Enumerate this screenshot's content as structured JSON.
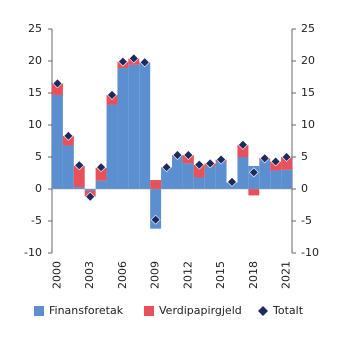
{
  "chart_data": {
    "type": "stacked-bar",
    "categories": [
      "2000",
      null,
      null,
      "2003",
      null,
      null,
      "2006",
      null,
      null,
      "2009",
      null,
      null,
      "2012",
      null,
      null,
      "2015",
      null,
      null,
      "2018",
      null,
      null,
      "2021"
    ],
    "series": [
      {
        "name": "Finansforetak",
        "color": "#5b8fd0",
        "style": "bar",
        "values": [
          14.7,
          6.8,
          0.3,
          -0.3,
          1.3,
          13.2,
          18.9,
          19.4,
          19.7,
          -6.2,
          3.3,
          5.0,
          4.0,
          1.8,
          3.5,
          4.3,
          1.0,
          5.0,
          3.6,
          4.5,
          2.9,
          3.0
        ]
      },
      {
        "name": "Verdipapirgjeld",
        "color": "#e8505b",
        "style": "bar",
        "values": [
          1.8,
          1.5,
          3.3,
          -0.9,
          2.0,
          1.5,
          1.0,
          1.0,
          0.1,
          1.4,
          0.1,
          0.3,
          1.3,
          2.0,
          0.5,
          0.3,
          0.0,
          1.9,
          -1.0,
          0.3,
          1.4,
          2.0
        ]
      },
      {
        "name": "Totalt",
        "color": "#1c2a5e",
        "style": "diamond",
        "values": [
          16.5,
          8.3,
          3.7,
          -1.2,
          3.4,
          14.7,
          19.9,
          20.4,
          19.8,
          -4.8,
          3.4,
          5.3,
          5.3,
          3.8,
          4.0,
          4.6,
          1.1,
          6.9,
          2.6,
          4.8,
          4.3,
          5.0
        ]
      }
    ],
    "ylim": [
      -10,
      25
    ],
    "yticks": [
      -10,
      -5,
      0,
      5,
      10,
      15,
      20,
      25
    ],
    "y2lim": [
      -10,
      25
    ],
    "y2ticks": [
      -10,
      -5,
      0,
      5,
      10,
      15,
      20,
      25
    ],
    "grid": false
  }
}
